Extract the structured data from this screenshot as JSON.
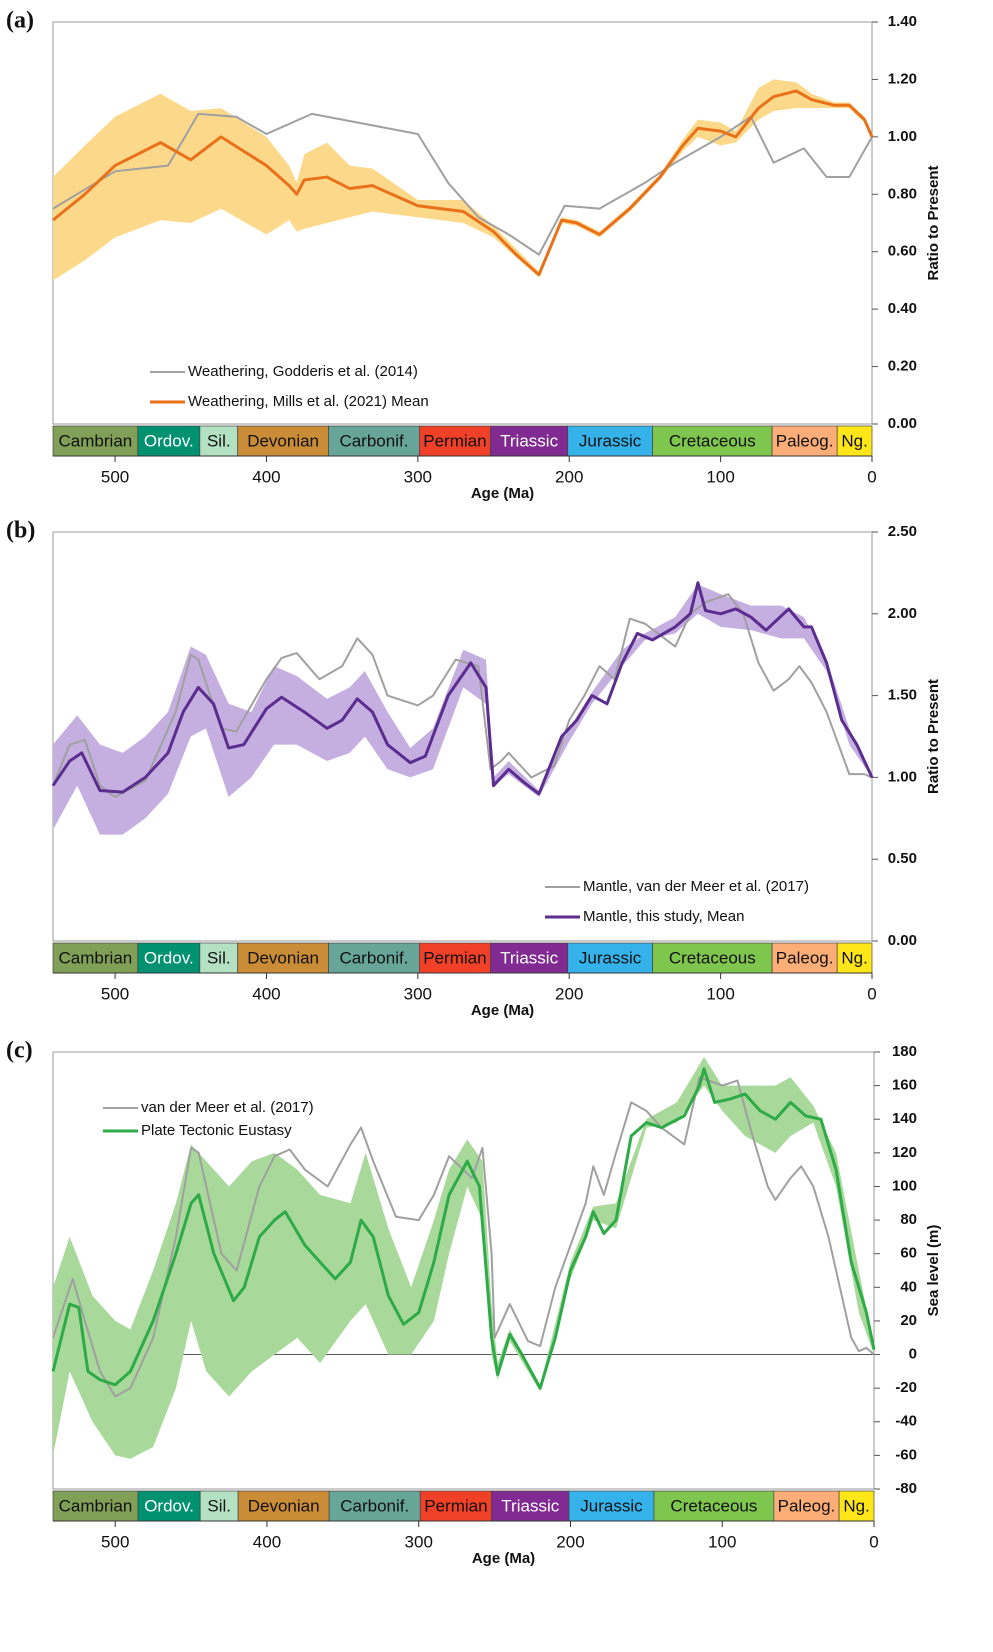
{
  "periods": [
    {
      "name": "Cambrian",
      "start": 541,
      "end": 485,
      "color": "#7fa056",
      "text_color": "#111111"
    },
    {
      "name": "Ordov.",
      "start": 485,
      "end": 444,
      "color": "#009270",
      "text_color": "#ffffff"
    },
    {
      "name": "Sil.",
      "start": 444,
      "end": 419,
      "color": "#b3e1c2",
      "text_color": "#111111"
    },
    {
      "name": "Devonian",
      "start": 419,
      "end": 359,
      "color": "#cb8c37",
      "text_color": "#111111"
    },
    {
      "name": "Carbonif.",
      "start": 359,
      "end": 299,
      "color": "#67a599",
      "text_color": "#111111"
    },
    {
      "name": "Permian",
      "start": 299,
      "end": 252,
      "color": "#f04028",
      "text_color": "#111111"
    },
    {
      "name": "Triassic",
      "start": 252,
      "end": 201,
      "color": "#812b92",
      "text_color": "#ffffff"
    },
    {
      "name": "Jurassic",
      "start": 201,
      "end": 145,
      "color": "#34b2e9",
      "text_color": "#111111"
    },
    {
      "name": "Cretaceous",
      "start": 145,
      "end": 66,
      "color": "#7fc64e",
      "text_color": "#111111"
    },
    {
      "name": "Paleog.",
      "start": 66,
      "end": 23,
      "color": "#fdae78",
      "text_color": "#111111"
    },
    {
      "name": "Ng.",
      "start": 23,
      "end": 0,
      "color": "#ffe619",
      "text_color": "#111111"
    }
  ],
  "chart_data": [
    {
      "type": "line",
      "panel_label": "(a)",
      "x_label": "Age (Ma)",
      "y_label": "Ratio to Present",
      "xlim": [
        541,
        0
      ],
      "xticks": [
        500,
        400,
        300,
        200,
        100,
        0
      ],
      "ylim": [
        0,
        1.4
      ],
      "yticks": [
        {
          "value": 0,
          "label": "0.00"
        },
        {
          "value": 0.2,
          "label": "0.20"
        },
        {
          "value": 0.4,
          "label": "0.40"
        },
        {
          "value": 0.6,
          "label": "0.60"
        },
        {
          "value": 0.8,
          "label": "0.80"
        },
        {
          "value": 1,
          "label": "1.00"
        },
        {
          "value": 1.2,
          "label": "1.20"
        },
        {
          "value": 1.4,
          "label": "1.40"
        }
      ],
      "legend": "lower center",
      "band": {
        "color": "#fcd98a",
        "x": [
          541,
          520,
          500,
          470,
          450,
          430,
          400,
          385,
          380,
          375,
          360,
          345,
          330,
          300,
          270,
          250,
          235,
          220,
          205,
          195,
          180,
          160,
          140,
          125,
          115,
          100,
          90,
          75,
          65,
          50,
          40,
          25,
          15,
          5,
          0
        ],
        "low": [
          0.5,
          0.57,
          0.65,
          0.71,
          0.7,
          0.75,
          0.66,
          0.71,
          0.67,
          0.68,
          0.7,
          0.72,
          0.74,
          0.72,
          0.7,
          0.65,
          0.58,
          0.51,
          0.7,
          0.69,
          0.65,
          0.74,
          0.85,
          0.95,
          1.0,
          0.97,
          0.98,
          1.06,
          1.09,
          1.1,
          1.1,
          1.1,
          1.1,
          1.05,
          1.0
        ],
        "high": [
          0.86,
          0.97,
          1.07,
          1.15,
          1.09,
          1.1,
          1.0,
          0.9,
          0.84,
          0.94,
          0.98,
          0.9,
          0.89,
          0.78,
          0.78,
          0.69,
          0.61,
          0.53,
          0.72,
          0.71,
          0.67,
          0.76,
          0.87,
          0.99,
          1.06,
          1.05,
          1.02,
          1.17,
          1.2,
          1.19,
          1.15,
          1.12,
          1.12,
          1.07,
          1.0
        ]
      },
      "series": [
        {
          "name": "Weathering, Godderis et al. (2014)",
          "color": "#a0a0a0",
          "width": 2,
          "x": [
            541,
            500,
            465,
            445,
            420,
            400,
            370,
            300,
            280,
            260,
            240,
            220,
            203,
            180,
            150,
            130,
            100,
            80,
            65,
            45,
            30,
            15,
            0
          ],
          "values": [
            0.75,
            0.88,
            0.9,
            1.08,
            1.07,
            1.01,
            1.08,
            1.01,
            0.84,
            0.72,
            0.66,
            0.59,
            0.76,
            0.75,
            0.84,
            0.91,
            1.0,
            1.07,
            0.91,
            0.96,
            0.86,
            0.86,
            1.0
          ]
        },
        {
          "name": "Weathering, Mills et al. (2021) Mean",
          "color": "#e8711a",
          "width": 3,
          "x": [
            541,
            520,
            500,
            470,
            450,
            430,
            400,
            385,
            380,
            375,
            360,
            345,
            330,
            300,
            270,
            250,
            235,
            220,
            205,
            195,
            180,
            160,
            140,
            125,
            115,
            100,
            90,
            75,
            65,
            50,
            40,
            25,
            15,
            5,
            0
          ],
          "values": [
            0.71,
            0.8,
            0.9,
            0.98,
            0.92,
            1.0,
            0.9,
            0.83,
            0.8,
            0.85,
            0.86,
            0.82,
            0.83,
            0.76,
            0.74,
            0.67,
            0.59,
            0.52,
            0.71,
            0.7,
            0.66,
            0.75,
            0.86,
            0.97,
            1.03,
            1.02,
            1.0,
            1.1,
            1.14,
            1.16,
            1.13,
            1.11,
            1.11,
            1.06,
            1.0
          ]
        }
      ]
    },
    {
      "type": "line",
      "panel_label": "(b)",
      "x_label": "Age (Ma)",
      "y_label": "Ratio to Present",
      "xlim": [
        541,
        0
      ],
      "xticks": [
        500,
        400,
        300,
        200,
        100,
        0
      ],
      "ylim": [
        0,
        2.5
      ],
      "yticks": [
        {
          "value": 0,
          "label": "0.00"
        },
        {
          "value": 0.5,
          "label": "0.50"
        },
        {
          "value": 1,
          "label": "1.00"
        },
        {
          "value": 1.5,
          "label": "1.50"
        },
        {
          "value": 2,
          "label": "2.00"
        },
        {
          "value": 2.5,
          "label": "2.50"
        }
      ],
      "legend": "lower right",
      "band": {
        "color": "#c5aee0",
        "x": [
          541,
          525,
          510,
          495,
          480,
          465,
          450,
          440,
          425,
          410,
          395,
          380,
          360,
          345,
          335,
          320,
          305,
          290,
          270,
          255,
          250,
          240,
          220,
          200,
          185,
          165,
          150,
          130,
          115,
          100,
          80,
          60,
          45,
          30,
          15,
          0
        ],
        "low": [
          0.68,
          0.95,
          0.65,
          0.65,
          0.75,
          0.9,
          1.25,
          1.3,
          0.88,
          1.0,
          1.2,
          1.2,
          1.1,
          1.15,
          1.25,
          1.05,
          1.0,
          1.05,
          1.55,
          1.45,
          0.95,
          1.02,
          0.88,
          1.22,
          1.45,
          1.68,
          1.84,
          1.88,
          2.0,
          1.92,
          1.9,
          1.85,
          1.85,
          1.65,
          1.2,
          1.0
        ],
        "high": [
          1.2,
          1.38,
          1.2,
          1.15,
          1.25,
          1.4,
          1.8,
          1.75,
          1.45,
          1.4,
          1.68,
          1.62,
          1.48,
          1.55,
          1.65,
          1.4,
          1.18,
          1.3,
          1.78,
          1.72,
          1.0,
          1.1,
          0.92,
          1.3,
          1.52,
          1.78,
          1.88,
          1.98,
          2.18,
          2.12,
          2.05,
          2.05,
          1.98,
          1.72,
          1.3,
          1.0
        ]
      },
      "series": [
        {
          "name": "Mantle, van der Meer et al. (2017)",
          "color": "#a0a0a0",
          "width": 2,
          "x": [
            541,
            530,
            520,
            510,
            500,
            480,
            460,
            450,
            445,
            430,
            420,
            400,
            390,
            380,
            365,
            350,
            340,
            330,
            320,
            300,
            290,
            275,
            260,
            252,
            245,
            240,
            225,
            210,
            200,
            190,
            180,
            170,
            160,
            150,
            140,
            130,
            120,
            110,
            95,
            85,
            75,
            65,
            55,
            48,
            40,
            30,
            15,
            5,
            0
          ],
          "values": [
            0.95,
            1.2,
            1.23,
            0.95,
            0.88,
            0.98,
            1.4,
            1.75,
            1.72,
            1.3,
            1.28,
            1.6,
            1.73,
            1.76,
            1.6,
            1.68,
            1.85,
            1.75,
            1.5,
            1.44,
            1.5,
            1.72,
            1.68,
            1.05,
            1.1,
            1.15,
            1.0,
            1.07,
            1.35,
            1.5,
            1.68,
            1.6,
            1.97,
            1.94,
            1.87,
            1.8,
            2.0,
            2.07,
            2.12,
            2.0,
            1.7,
            1.53,
            1.6,
            1.68,
            1.58,
            1.4,
            1.02,
            1.02,
            1.0
          ]
        },
        {
          "name": "Mantle, this study, Mean",
          "color": "#5b2d8e",
          "width": 3,
          "x": [
            541,
            530,
            522,
            510,
            495,
            480,
            465,
            455,
            445,
            435,
            425,
            415,
            400,
            390,
            375,
            360,
            350,
            340,
            330,
            320,
            305,
            295,
            280,
            265,
            255,
            250,
            240,
            230,
            220,
            205,
            195,
            185,
            175,
            165,
            155,
            145,
            130,
            120,
            115,
            110,
            100,
            90,
            80,
            70,
            55,
            45,
            40,
            30,
            20,
            10,
            0
          ],
          "values": [
            0.95,
            1.1,
            1.15,
            0.92,
            0.91,
            1.0,
            1.15,
            1.4,
            1.55,
            1.45,
            1.18,
            1.2,
            1.42,
            1.49,
            1.4,
            1.3,
            1.35,
            1.48,
            1.4,
            1.2,
            1.09,
            1.13,
            1.5,
            1.7,
            1.55,
            0.95,
            1.05,
            0.97,
            0.9,
            1.25,
            1.35,
            1.5,
            1.45,
            1.7,
            1.88,
            1.84,
            1.92,
            2.0,
            2.19,
            2.02,
            2.0,
            2.03,
            1.98,
            1.9,
            2.03,
            1.92,
            1.92,
            1.7,
            1.35,
            1.2,
            1.0
          ]
        }
      ]
    },
    {
      "type": "line",
      "panel_label": "(c)",
      "x_label": "Age (Ma)",
      "y_label": "Sea level (m)",
      "xlim": [
        541,
        0
      ],
      "xticks": [
        500,
        400,
        300,
        200,
        100,
        0
      ],
      "ylim": [
        -80,
        180
      ],
      "yticks": [
        -80,
        -60,
        -40,
        -20,
        0,
        20,
        40,
        60,
        80,
        100,
        120,
        140,
        160,
        180
      ],
      "zero_line": true,
      "legend": "upper left",
      "band": {
        "color": "#a8d99a",
        "x": [
          541,
          530,
          515,
          500,
          490,
          475,
          460,
          450,
          440,
          425,
          410,
          395,
          380,
          365,
          345,
          335,
          320,
          305,
          290,
          280,
          268,
          258,
          252,
          248,
          240,
          220,
          200,
          185,
          170,
          150,
          130,
          112,
          100,
          85,
          65,
          55,
          40,
          25,
          10,
          0
        ],
        "low": [
          -60,
          -10,
          -40,
          -60,
          -62,
          -55,
          -20,
          20,
          -10,
          -25,
          -10,
          0,
          10,
          -5,
          20,
          30,
          0,
          0,
          20,
          60,
          100,
          80,
          0,
          -15,
          8,
          -22,
          45,
          80,
          75,
          135,
          138,
          160,
          145,
          130,
          120,
          130,
          138,
          100,
          25,
          0
        ],
        "high": [
          40,
          70,
          35,
          20,
          15,
          50,
          90,
          125,
          115,
          100,
          115,
          120,
          110,
          95,
          90,
          120,
          75,
          40,
          80,
          110,
          128,
          115,
          30,
          -5,
          15,
          -18,
          55,
          88,
          90,
          140,
          150,
          177,
          160,
          160,
          160,
          165,
          148,
          120,
          50,
          5
        ]
      },
      "series": [
        {
          "name": "van der Meer et al. (2017)",
          "color": "#a0a0a0",
          "width": 2,
          "x": [
            541,
            528,
            520,
            510,
            500,
            490,
            475,
            460,
            450,
            445,
            430,
            420,
            405,
            395,
            385,
            375,
            360,
            345,
            338,
            330,
            315,
            300,
            290,
            280,
            265,
            258,
            252,
            250,
            240,
            228,
            220,
            210,
            200,
            190,
            185,
            178,
            170,
            160,
            150,
            140,
            125,
            115,
            100,
            90,
            80,
            70,
            65,
            55,
            48,
            40,
            30,
            15,
            10,
            5,
            0
          ],
          "values": [
            10,
            45,
            20,
            -10,
            -25,
            -20,
            10,
            70,
            123,
            120,
            60,
            50,
            100,
            118,
            122,
            110,
            100,
            125,
            135,
            115,
            82,
            80,
            95,
            118,
            105,
            123,
            60,
            10,
            30,
            8,
            5,
            40,
            65,
            90,
            112,
            95,
            120,
            150,
            145,
            135,
            125,
            165,
            160,
            163,
            130,
            100,
            92,
            105,
            112,
            100,
            70,
            10,
            2,
            4,
            0
          ]
        },
        {
          "name": "Plate Tectonic Eustasy",
          "color": "#2eaa48",
          "width": 3,
          "x": [
            541,
            530,
            524,
            518,
            510,
            500,
            490,
            475,
            460,
            450,
            445,
            435,
            428,
            422,
            415,
            405,
            395,
            388,
            375,
            365,
            355,
            345,
            338,
            330,
            320,
            310,
            300,
            290,
            280,
            268,
            260,
            252,
            248,
            240,
            232,
            220,
            210,
            200,
            190,
            185,
            178,
            170,
            160,
            150,
            140,
            125,
            115,
            112,
            105,
            95,
            85,
            75,
            65,
            55,
            45,
            35,
            25,
            15,
            5,
            0
          ],
          "values": [
            -10,
            30,
            28,
            -10,
            -15,
            -18,
            -10,
            20,
            60,
            90,
            95,
            60,
            45,
            32,
            40,
            70,
            80,
            85,
            65,
            55,
            45,
            55,
            80,
            70,
            35,
            18,
            25,
            55,
            95,
            115,
            100,
            10,
            -12,
            12,
            0,
            -20,
            10,
            50,
            70,
            85,
            72,
            80,
            130,
            138,
            135,
            142,
            160,
            170,
            150,
            152,
            155,
            145,
            140,
            150,
            142,
            140,
            110,
            55,
            25,
            3
          ]
        }
      ]
    }
  ]
}
